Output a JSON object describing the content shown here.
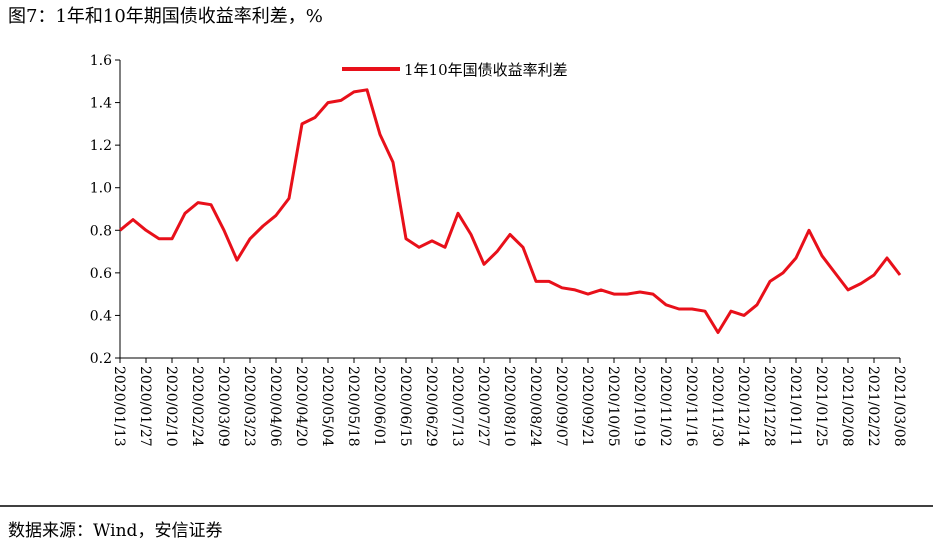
{
  "chart_data": {
    "type": "line",
    "title": "图7：1年和10年期国债收益率利差，%",
    "source": "数据来源：Wind，安信证券",
    "categories": [
      "2020/01/13",
      null,
      "2020/01/27",
      null,
      "2020/02/10",
      null,
      "2020/02/24",
      null,
      "2020/03/09",
      null,
      "2020/03/23",
      null,
      "2020/04/06",
      null,
      "2020/04/20",
      null,
      "2020/05/04",
      null,
      "2020/05/18",
      null,
      "2020/06/01",
      null,
      "2020/06/15",
      null,
      "2020/06/29",
      null,
      "2020/07/13",
      null,
      "2020/07/27",
      null,
      "2020/08/10",
      null,
      "2020/08/24",
      null,
      "2020/09/07",
      null,
      "2020/09/21",
      null,
      "2020/10/05",
      null,
      "2020/10/19",
      null,
      "2020/11/02",
      null,
      "2020/11/16",
      null,
      "2020/11/30",
      null,
      "2020/12/14",
      null,
      "2020/12/28",
      null,
      "2021/01/11",
      null,
      "2021/01/25",
      null,
      "2021/02/08",
      null,
      "2021/02/22",
      null,
      "2021/03/08"
    ],
    "series": [
      {
        "name": "1年10年国债收益率利差",
        "color": "#e8101a",
        "values": [
          0.8,
          0.85,
          0.8,
          0.76,
          0.76,
          0.88,
          0.93,
          0.92,
          0.8,
          0.66,
          0.76,
          0.82,
          0.87,
          0.95,
          1.3,
          1.33,
          1.4,
          1.41,
          1.45,
          1.46,
          1.25,
          1.12,
          0.76,
          0.72,
          0.75,
          0.72,
          0.88,
          0.78,
          0.64,
          0.7,
          0.78,
          0.72,
          0.56,
          0.56,
          0.53,
          0.52,
          0.5,
          0.52,
          0.5,
          0.5,
          0.51,
          0.5,
          0.45,
          0.43,
          0.43,
          0.42,
          0.32,
          0.42,
          0.4,
          0.45,
          0.56,
          0.6,
          0.67,
          0.8,
          0.68,
          0.6,
          0.52,
          0.55,
          0.59,
          0.67,
          0.59
        ]
      }
    ],
    "ylim": [
      0.2,
      1.6
    ],
    "yticks": [
      0.2,
      0.4,
      0.6,
      0.8,
      {
        "value": 1,
        "label": "1.0"
      },
      1.2,
      1.4,
      1.6
    ],
    "grid": false,
    "legend": "top"
  }
}
